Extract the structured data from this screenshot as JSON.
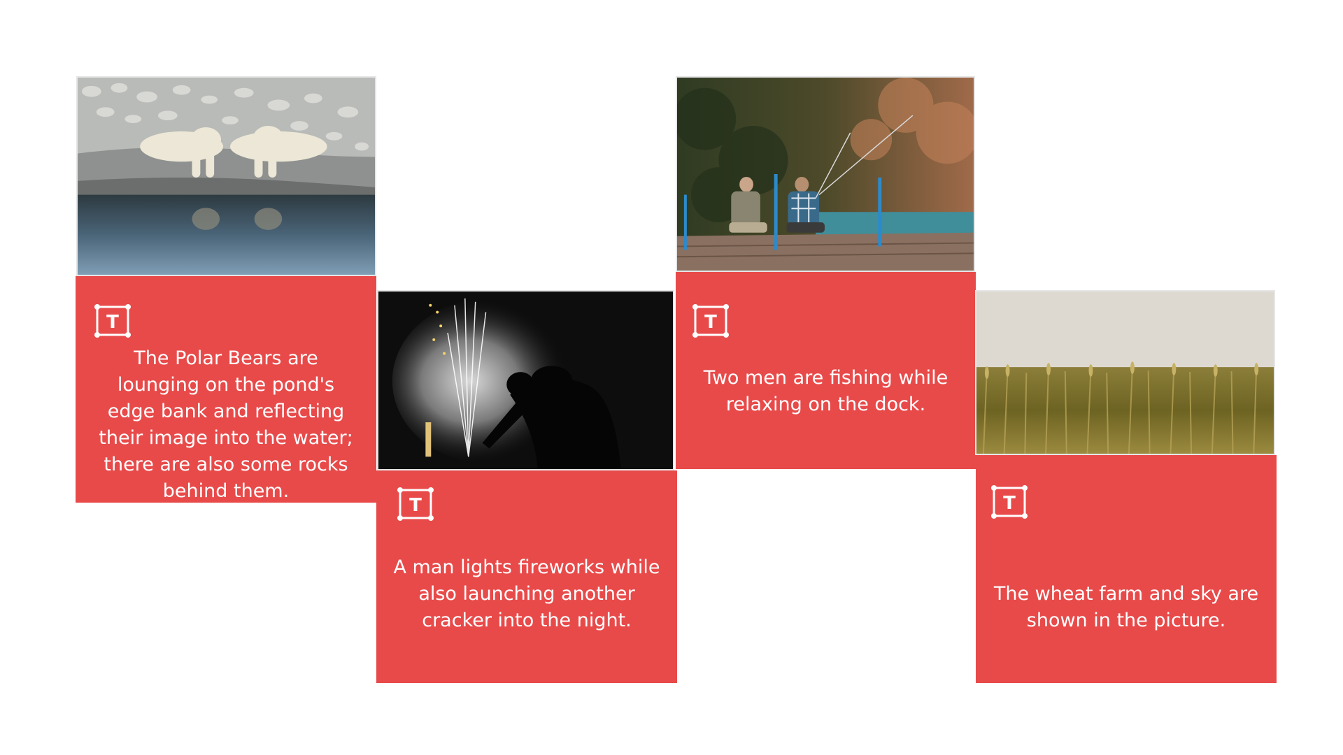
{
  "cards": [
    {
      "image_label": "polar-bears-photo",
      "icon": "text-box-icon",
      "icon_letter": "T",
      "caption": "The Polar Bears are lounging on the pond's edge bank and reflecting their image into the water; there are also some rocks behind them."
    },
    {
      "image_label": "fireworks-photo",
      "icon": "text-box-icon",
      "icon_letter": "T",
      "caption": "A man lights fireworks while also launching another cracker into the night."
    },
    {
      "image_label": "fishing-dock-photo",
      "icon": "text-box-icon",
      "icon_letter": "T",
      "caption": "Two men are fishing while relaxing on the dock."
    },
    {
      "image_label": "wheat-farm-photo",
      "icon": "text-box-icon",
      "icon_letter": "T",
      "caption": "The wheat farm and sky are shown in the picture."
    }
  ],
  "colors": {
    "panel": "#e84a4a",
    "text": "#ffffff",
    "background": "#ffffff"
  }
}
